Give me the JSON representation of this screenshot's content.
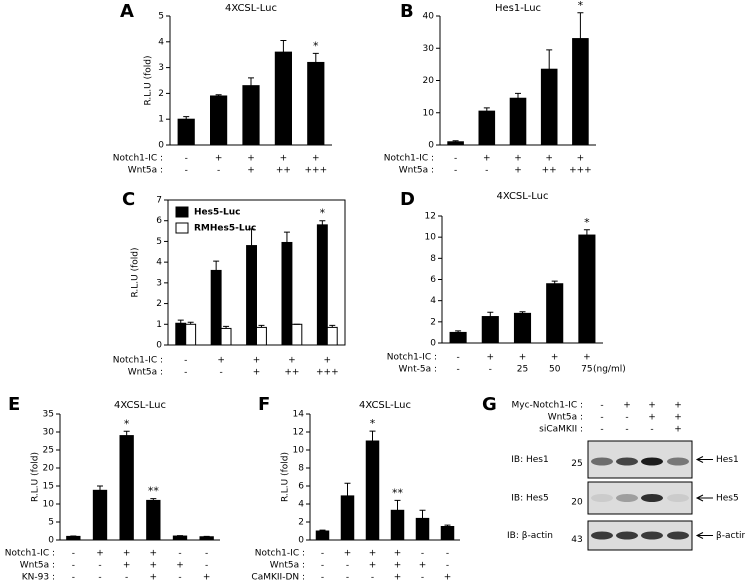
{
  "chart_data": [
    {
      "type": "bar",
      "panel": "A",
      "title": "4XCSL-Luc",
      "y_label": "R.L.U (fold)",
      "ylim": [
        0,
        5
      ],
      "yticks": [
        0,
        1,
        2,
        3,
        4,
        5
      ],
      "series": [
        {
          "color": "#000000",
          "values": [
            1.0,
            1.9,
            2.3,
            3.6,
            3.2
          ],
          "errors": [
            0.1,
            0.05,
            0.3,
            0.45,
            0.35
          ],
          "markers": [
            null,
            null,
            null,
            null,
            "*"
          ]
        }
      ],
      "conditions": [
        {
          "label": "Notch1-IC :",
          "values": [
            "-",
            "+",
            "+",
            "+",
            "+"
          ]
        },
        {
          "label": "Wnt5a :",
          "values": [
            "-",
            "-",
            "+",
            "++",
            "+++"
          ]
        }
      ]
    },
    {
      "type": "bar",
      "panel": "B",
      "title": "Hes1-Luc",
      "ylim": [
        0,
        40
      ],
      "yticks": [
        0,
        10,
        20,
        30,
        40
      ],
      "series": [
        {
          "color": "#000000",
          "values": [
            1,
            10.5,
            14.5,
            23.5,
            33
          ],
          "errors": [
            0.3,
            1,
            1.5,
            6,
            8
          ],
          "markers": [
            null,
            null,
            null,
            null,
            "*"
          ]
        }
      ],
      "conditions": [
        {
          "label": "Notch1-IC :",
          "values": [
            "-",
            "+",
            "+",
            "+",
            "+"
          ]
        },
        {
          "label": "Wnt5a :",
          "values": [
            "-",
            "-",
            "+",
            "++",
            "+++"
          ]
        }
      ]
    },
    {
      "type": "bar",
      "panel": "C",
      "y_label": "R.L.U (fold)",
      "ylim": [
        0,
        7
      ],
      "yticks": [
        0,
        1,
        2,
        3,
        4,
        5,
        6,
        7
      ],
      "series": [
        {
          "name": "Hes5-Luc",
          "color": "#000000",
          "values": [
            1.05,
            3.6,
            4.8,
            4.95,
            5.8
          ],
          "errors": [
            0.15,
            0.45,
            0.8,
            0.5,
            0.2
          ],
          "markers": [
            null,
            null,
            null,
            null,
            "*"
          ]
        },
        {
          "name": "RMHes5-Luc",
          "color": "#ffffff",
          "values": [
            1.0,
            0.8,
            0.85,
            1.0,
            0.85
          ],
          "errors": [
            0.1,
            0.1,
            0.1,
            0,
            0.1
          ]
        }
      ],
      "conditions": [
        {
          "label": "Notch1-IC :",
          "values": [
            "-",
            "+",
            "+",
            "+",
            "+"
          ]
        },
        {
          "label": "Wnt5a :",
          "values": [
            "-",
            "-",
            "+",
            "++",
            "+++"
          ]
        }
      ]
    },
    {
      "type": "bar",
      "panel": "D",
      "title": "4XCSL-Luc",
      "ylim": [
        0,
        12
      ],
      "yticks": [
        0,
        2,
        4,
        6,
        8,
        10,
        12
      ],
      "series": [
        {
          "color": "#000000",
          "values": [
            1,
            2.5,
            2.8,
            5.6,
            10.2
          ],
          "errors": [
            0.15,
            0.4,
            0.15,
            0.25,
            0.5
          ],
          "markers": [
            null,
            null,
            null,
            null,
            "*"
          ]
        }
      ],
      "conditions": [
        {
          "label": "Notch1-IC :",
          "values": [
            "-",
            "+",
            "+",
            "+",
            "+"
          ]
        },
        {
          "label": "Wnt-5a :",
          "values": [
            "-",
            "-",
            "25",
            "50",
            "75"
          ],
          "unit": "(ng/ml)"
        }
      ]
    },
    {
      "type": "bar",
      "panel": "E",
      "title": "4XCSL-Luc",
      "y_label": "R.L.U (fold)",
      "ylim": [
        0,
        35
      ],
      "yticks": [
        0,
        5,
        10,
        15,
        20,
        25,
        30,
        35
      ],
      "series": [
        {
          "color": "#000000",
          "values": [
            1,
            13.8,
            29,
            11,
            1.1,
            0.9
          ],
          "errors": [
            0.1,
            1.2,
            1.2,
            0.5,
            0.1,
            0.1
          ],
          "markers": [
            null,
            null,
            "*",
            "**",
            null,
            null
          ]
        }
      ],
      "conditions": [
        {
          "label": "Notch1-IC :",
          "values": [
            "-",
            "+",
            "+",
            "+",
            "-",
            "-"
          ]
        },
        {
          "label": "Wnt5a :",
          "values": [
            "-",
            "-",
            "+",
            "+",
            "+",
            "-"
          ]
        },
        {
          "label": "KN-93 :",
          "values": [
            "-",
            "-",
            "-",
            "+",
            "-",
            "+"
          ]
        }
      ]
    },
    {
      "type": "bar",
      "panel": "F",
      "title": "4XCSL-Luc",
      "y_label": "R.L.U (fold)",
      "ylim": [
        0,
        14
      ],
      "yticks": [
        0,
        2,
        4,
        6,
        8,
        10,
        12,
        14
      ],
      "series": [
        {
          "color": "#000000",
          "values": [
            1,
            4.9,
            11,
            3.3,
            2.4,
            1.5
          ],
          "errors": [
            0.1,
            1.4,
            1.1,
            1.1,
            0.9,
            0.15
          ],
          "markers": [
            null,
            null,
            "*",
            "**",
            null,
            null
          ]
        }
      ],
      "conditions": [
        {
          "label": "Notch1-IC :",
          "values": [
            "-",
            "+",
            "+",
            "+",
            "-",
            "-"
          ]
        },
        {
          "label": "Wnt5a :",
          "values": [
            "-",
            "-",
            "+",
            "+",
            "+",
            "-"
          ]
        },
        {
          "label": "CaMKII-DN :",
          "values": [
            "-",
            "-",
            "-",
            "+",
            "-",
            "+"
          ]
        }
      ]
    }
  ],
  "blot": {
    "panel": "G",
    "conditions": [
      {
        "label": "Myc-Notch1-IC :",
        "values": [
          "-",
          "+",
          "+",
          "+"
        ]
      },
      {
        "label": "Wnt5a :",
        "values": [
          "-",
          "-",
          "+",
          "+"
        ]
      },
      {
        "label": "siCaMKII :",
        "values": [
          "-",
          "-",
          "-",
          "+"
        ]
      }
    ],
    "rows": [
      {
        "antibody": "IB: Hes1",
        "mw": "25",
        "band": "Hes1"
      },
      {
        "antibody": "IB: Hes5",
        "mw": "20",
        "band": "Hes5"
      },
      {
        "antibody": "IB: β-actin",
        "mw": "43",
        "band": "β-actin"
      }
    ]
  }
}
